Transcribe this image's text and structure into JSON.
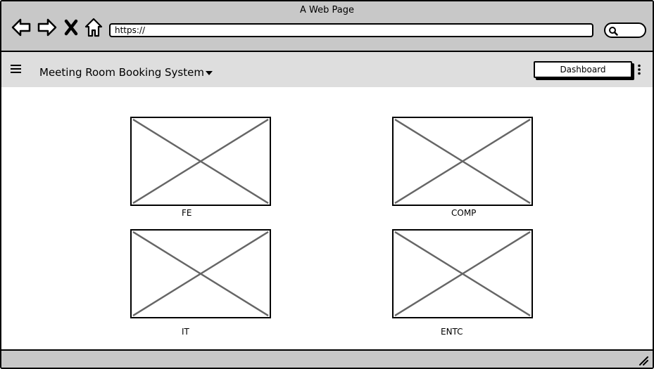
{
  "window": {
    "title": "A Web Page"
  },
  "browser": {
    "url": "https://",
    "icons": [
      "back-arrow-icon",
      "forward-arrow-icon",
      "stop-icon",
      "home-icon",
      "search-icon"
    ]
  },
  "appbar": {
    "title": "Meeting Room Booking System",
    "dashboard_label": "Dashboard",
    "icons": [
      "hamburger-menu-icon",
      "chevron-down-icon",
      "kebab-menu-icon"
    ]
  },
  "tiles": [
    {
      "label": "FE"
    },
    {
      "label": "COMP"
    },
    {
      "label": "IT"
    },
    {
      "label": "ENTC"
    }
  ]
}
